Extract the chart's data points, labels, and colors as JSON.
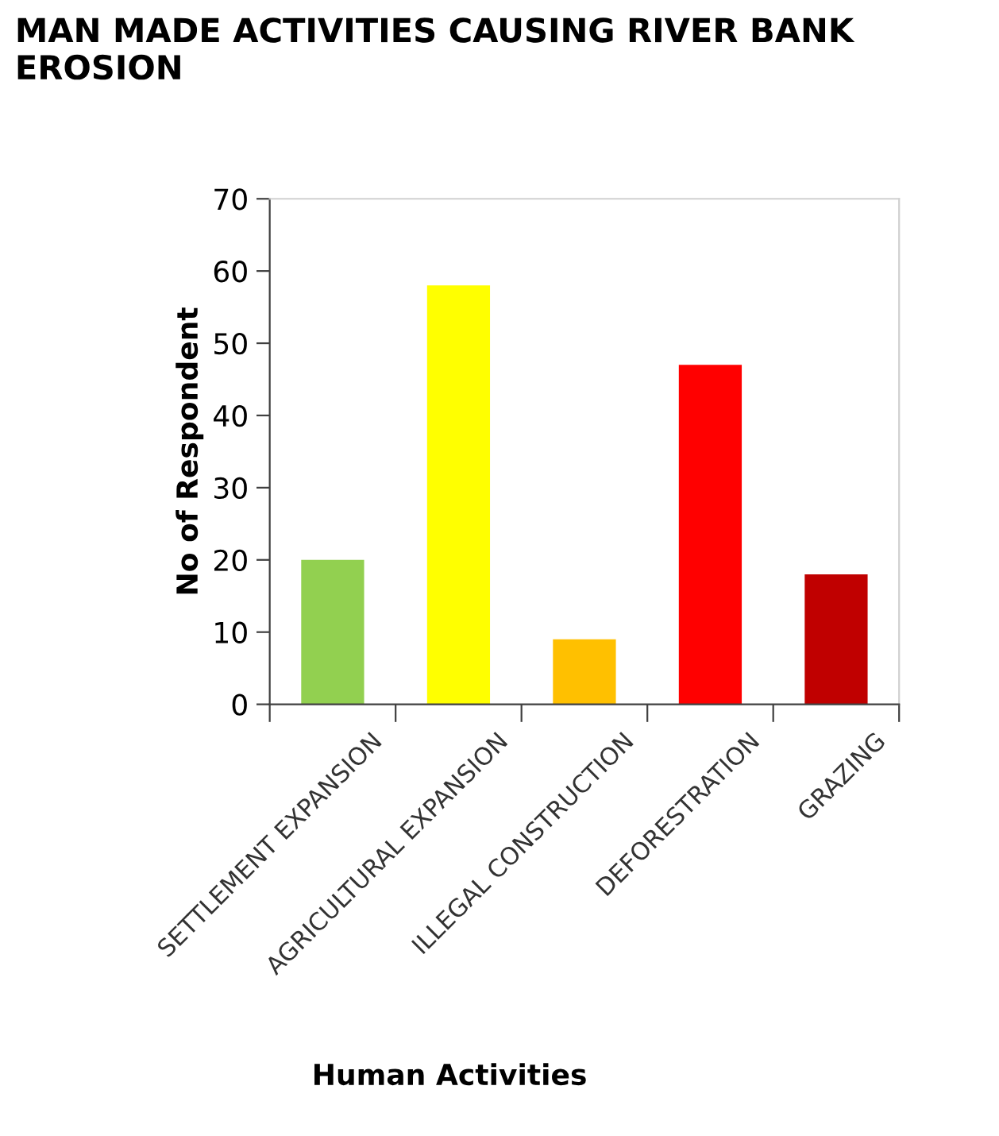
{
  "chart_data": {
    "type": "bar",
    "title": "MAN MADE ACTIVITIES CAUSING RIVER BANK EROSION",
    "xlabel": "Human Activities",
    "ylabel": "No of Respondent",
    "categories": [
      "SETTLEMENT EXPANSION",
      "AGRICULTURAL EXPANSION",
      "ILLEGAL CONSTRUCTION",
      "DEFORESTRATION",
      "GRAZING"
    ],
    "values": [
      20,
      58,
      9,
      47,
      18
    ],
    "colors": [
      "#92d050",
      "#ffff00",
      "#ffc000",
      "#ff0000",
      "#c00000"
    ],
    "ylim": [
      0,
      70
    ],
    "yticks": [
      0,
      10,
      20,
      30,
      40,
      50,
      60,
      70
    ],
    "grid": false,
    "legend": false
  }
}
